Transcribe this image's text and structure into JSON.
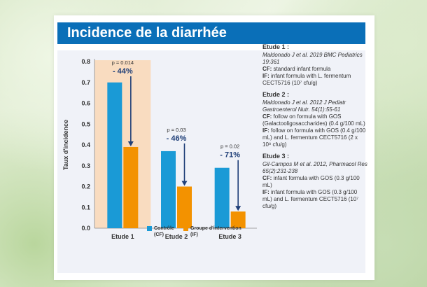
{
  "title": "Incidence de la diarrhée",
  "chart_data": {
    "type": "bar",
    "title": "Incidence de la diarrhée",
    "ylabel": "Taux d'incidence",
    "xlabel": "",
    "ylim": [
      0,
      0.8
    ],
    "yticks": [
      "0.0",
      "0.1",
      "0.2",
      "0.3",
      "0.4",
      "0.5",
      "0.6",
      "0.7",
      "0.8"
    ],
    "categories": [
      "Etude 1",
      "Etude 2",
      "Etude 3"
    ],
    "series": [
      {
        "name": "Contrôle",
        "abbr": "(CF)",
        "color": "#1a9ad6",
        "values": [
          0.7,
          0.37,
          0.29
        ]
      },
      {
        "name": "Groupe d'intervention",
        "abbr": "(IF)",
        "color": "#f39200",
        "values": [
          0.39,
          0.2,
          0.08
        ]
      }
    ],
    "annotations": [
      {
        "p": "p = 0.014",
        "change": "- 44%"
      },
      {
        "p": "p = 0.03",
        "change": "- 46%"
      },
      {
        "p": "p = 0.02",
        "change": "- 71%"
      }
    ],
    "highlight_category": "Etude 1",
    "highlight_color": "#f9dcc0",
    "grid": false
  },
  "references": [
    {
      "head": "Etude 1 :",
      "cite": "Maldonado J et al. 2019 BMC Pediatrics 19:361",
      "lines": [
        {
          "label": "CF:",
          "text": " standard infant formula"
        },
        {
          "label": "IF:",
          "text": " infant formula with L. fermentum CECT5716 (10⁷ cfu/g)"
        }
      ]
    },
    {
      "head": "Etude 2 :",
      "cite": "Maldonado J et al. 2012 J Pediatr Gastroenterol Nutr. 54(1):55-61",
      "lines": [
        {
          "label": "CF:",
          "text": " follow on formula with GOS (Galactooligosaccharides) (0.4 g/100 mL)"
        },
        {
          "label": "IF:",
          "text": " follow on formula with GOS (0.4 g/100 mL) and L. fermentum CECT5716 (2 x 10⁸ cfu/g)"
        }
      ]
    },
    {
      "head": "Etude 3 :",
      "cite": "Gil-Campos M et al. 2012, Pharmacol Res 65(2):231-238",
      "lines": [
        {
          "label": "CF:",
          "text": " infant formula with GOS (0.3 g/100 mL)"
        },
        {
          "label": "IF:",
          "text": " infant formula with GOS (0.3 g/100 mL) and L. fermentum CECT5716 (10⁷ cfu/g)"
        }
      ]
    }
  ]
}
